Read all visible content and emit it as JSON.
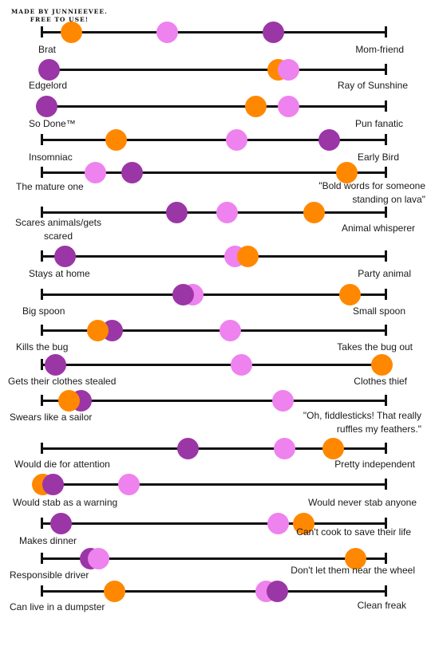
{
  "credit": [
    "MADE BY JUNNIEEVEE.",
    "FREE TO USE!"
  ],
  "colors": {
    "pink": "#ee82ee",
    "purple": "#9b36a6",
    "orange": "#ff8800",
    "line": "#111111"
  },
  "scale": {
    "description_left_label": "left trait",
    "description_right_label": "right trait"
  },
  "rows": [
    {
      "left": "Brat",
      "right": "Mom-friend",
      "dots": [
        {
          "c": "orange",
          "v": 0.088
        },
        {
          "c": "pink",
          "v": 0.366
        },
        {
          "c": "purple",
          "v": 0.674
        }
      ]
    },
    {
      "left": "Edgelord",
      "right": "Ray of Sunshine",
      "dots": [
        {
          "c": "purple",
          "v": 0.025
        },
        {
          "c": "orange",
          "v": 0.688
        },
        {
          "c": "pink",
          "v": 0.716
        }
      ]
    },
    {
      "left": "So Done™",
      "right": "Pun fanatic",
      "dots": [
        {
          "c": "purple",
          "v": 0.018
        },
        {
          "c": "orange",
          "v": 0.623
        },
        {
          "c": "pink",
          "v": 0.716
        }
      ]
    },
    {
      "left": "Insomniac",
      "right": "Early Bird",
      "dots": [
        {
          "c": "orange",
          "v": 0.218
        },
        {
          "c": "pink",
          "v": 0.567
        },
        {
          "c": "purple",
          "v": 0.835
        }
      ]
    },
    {
      "left": "The mature one",
      "right": "\"Bold words for someone standing on lava\"",
      "dots": [
        {
          "c": "pink",
          "v": 0.158
        },
        {
          "c": "purple",
          "v": 0.264
        },
        {
          "c": "orange",
          "v": 0.886
        }
      ]
    },
    {
      "left": "Scares animals/gets scared",
      "right": "Animal whisperer",
      "dots": [
        {
          "c": "purple",
          "v": 0.393
        },
        {
          "c": "pink",
          "v": 0.539
        },
        {
          "c": "orange",
          "v": 0.791
        }
      ]
    },
    {
      "left": "Stays at home",
      "right": "Party animal",
      "dots": [
        {
          "c": "purple",
          "v": 0.07
        },
        {
          "c": "pink",
          "v": 0.563
        },
        {
          "c": "orange",
          "v": 0.6
        }
      ]
    },
    {
      "left": "Big spoon",
      "right": "Small spoon",
      "dots": [
        {
          "c": "pink",
          "v": 0.44
        },
        {
          "c": "purple",
          "v": 0.412
        },
        {
          "c": "orange",
          "v": 0.895
        }
      ]
    },
    {
      "left": "Kills the bug",
      "right": "Takes the bug out",
      "dots": [
        {
          "c": "purple",
          "v": 0.207
        },
        {
          "c": "orange",
          "v": 0.165
        },
        {
          "c": "pink",
          "v": 0.549
        }
      ]
    },
    {
      "left": "Gets their clothes stealed",
      "right": "Clothes thief",
      "dots": [
        {
          "c": "purple",
          "v": 0.042
        },
        {
          "c": "pink",
          "v": 0.581
        },
        {
          "c": "orange",
          "v": 0.988
        }
      ]
    },
    {
      "left": "Swears like a sailor",
      "right": "\"Oh, fiddlesticks! That really ruffles my feathers.\"",
      "dots": [
        {
          "c": "purple",
          "v": 0.116
        },
        {
          "c": "orange",
          "v": 0.081
        },
        {
          "c": "pink",
          "v": 0.7
        }
      ]
    },
    {
      "left": "Would die for attention",
      "right": "Pretty independent",
      "dots": [
        {
          "c": "purple",
          "v": 0.426
        },
        {
          "c": "pink",
          "v": 0.705
        },
        {
          "c": "orange",
          "v": 0.847
        }
      ]
    },
    {
      "left": "Would stab as a warning",
      "right": "Would never stab anyone",
      "dots": [
        {
          "c": "orange",
          "v": 0.005
        },
        {
          "c": "purple",
          "v": 0.035
        },
        {
          "c": "pink",
          "v": 0.255
        }
      ]
    },
    {
      "left": "Makes dinner",
      "right": "Can't cook to save their life",
      "dots": [
        {
          "c": "purple",
          "v": 0.06
        },
        {
          "c": "pink",
          "v": 0.688
        },
        {
          "c": "orange",
          "v": 0.76
        }
      ]
    },
    {
      "left": "Responsible driver",
      "right": "Don't let them near the wheel",
      "dots": [
        {
          "c": "purple",
          "v": 0.144
        },
        {
          "c": "pink",
          "v": 0.167
        },
        {
          "c": "orange",
          "v": 0.91
        }
      ]
    },
    {
      "left": "Can live in a dumpster",
      "right": "Clean freak",
      "dots": [
        {
          "c": "orange",
          "v": 0.213
        },
        {
          "c": "pink",
          "v": 0.653
        },
        {
          "c": "purple",
          "v": 0.684
        }
      ]
    }
  ]
}
